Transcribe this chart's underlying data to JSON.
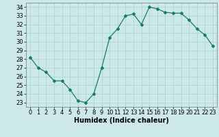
{
  "x": [
    0,
    1,
    2,
    3,
    4,
    5,
    6,
    7,
    8,
    9,
    10,
    11,
    12,
    13,
    14,
    15,
    16,
    17,
    18,
    19,
    20,
    21,
    22,
    23
  ],
  "y": [
    28.2,
    27.0,
    26.5,
    25.5,
    25.5,
    24.5,
    23.2,
    23.0,
    24.0,
    27.0,
    30.5,
    31.5,
    33.0,
    33.2,
    32.0,
    34.0,
    33.8,
    33.4,
    33.3,
    33.3,
    32.5,
    31.5,
    30.8,
    29.5
  ],
  "line_color": "#1a7a6e",
  "marker": "D",
  "marker_size": 2,
  "bg_color": "#cce8e8",
  "grid_color": "#b0d8d8",
  "xlabel": "Humidex (Indice chaleur)",
  "xlabel_fontsize": 7,
  "tick_fontsize": 6,
  "yticks": [
    23,
    24,
    25,
    26,
    27,
    28,
    29,
    30,
    31,
    32,
    33,
    34
  ],
  "xticks": [
    0,
    1,
    2,
    3,
    4,
    5,
    6,
    7,
    8,
    9,
    10,
    11,
    12,
    13,
    14,
    15,
    16,
    17,
    18,
    19,
    20,
    21,
    22,
    23
  ],
  "xlim": [
    -0.5,
    23.5
  ],
  "ylim": [
    22.5,
    34.5
  ]
}
